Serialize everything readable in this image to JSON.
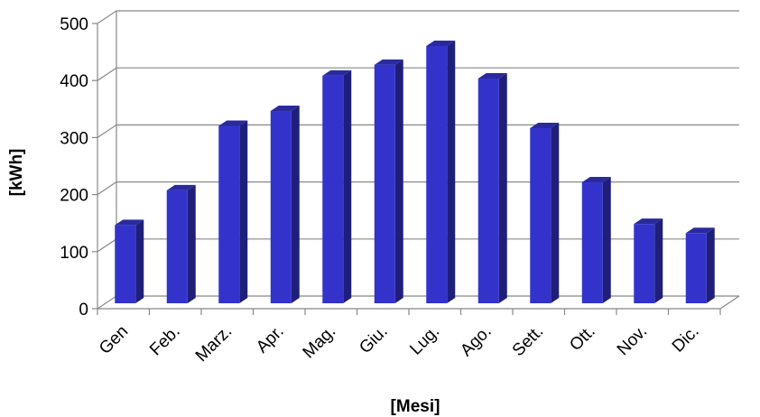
{
  "chart_data": {
    "type": "bar",
    "title": "",
    "xlabel": "[Mesi]",
    "ylabel": "[kWh]",
    "ylim": [
      0,
      500
    ],
    "yticks": [
      0,
      100,
      200,
      300,
      400,
      500
    ],
    "grid": true,
    "legend": "none",
    "bar_color": "#3333cc",
    "categories": [
      "Gen",
      "Feb.",
      "Marz.",
      "Apr.",
      "Mag.",
      "Giu.",
      "Lug.",
      "Ago.",
      "Sett.",
      "Ott.",
      "Nov.",
      "Dic."
    ],
    "values": [
      137,
      198,
      311,
      337,
      399,
      418,
      451,
      394,
      307,
      212,
      139,
      123
    ]
  }
}
